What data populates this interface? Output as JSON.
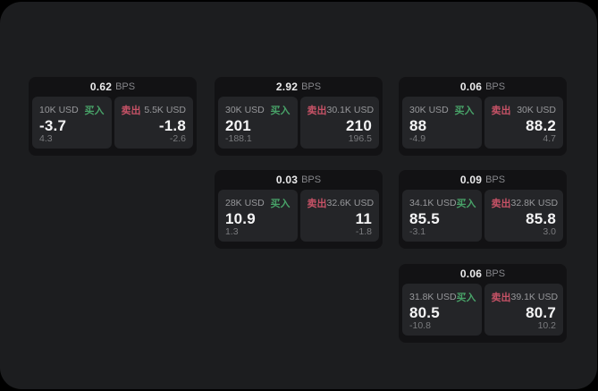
{
  "theme": {
    "backdrop": "#000000",
    "panel_bg": "#1c1d1f",
    "card_bg": "#121214",
    "cell_bg": "#242528",
    "buy_color": "#48a268",
    "sell_color": "#c65266",
    "value_color": "#f4f4f5",
    "muted_text": "#97989b"
  },
  "labels": {
    "bps": "BPS",
    "buy": "买入",
    "sell": "卖出"
  },
  "cards": [
    {
      "bps": "0.62",
      "buy": {
        "amount": "10K USD",
        "value": "-3.7",
        "delta": "4.3"
      },
      "sell": {
        "amount": "5.5K USD",
        "value": "-1.8",
        "delta": "-2.6"
      }
    },
    {
      "bps": "2.92",
      "buy": {
        "amount": "30K USD",
        "value": "201",
        "delta": "-188.1"
      },
      "sell": {
        "amount": "30.1K USD",
        "value": "210",
        "delta": "196.5"
      }
    },
    {
      "bps": "0.06",
      "buy": {
        "amount": "30K USD",
        "value": "88",
        "delta": "-4.9"
      },
      "sell": {
        "amount": "30K USD",
        "value": "88.2",
        "delta": "4.7"
      }
    },
    {
      "bps": "0.03",
      "buy": {
        "amount": "28K USD",
        "value": "10.9",
        "delta": "1.3"
      },
      "sell": {
        "amount": "32.6K USD",
        "value": "11",
        "delta": "-1.8"
      }
    },
    {
      "bps": "0.09",
      "buy": {
        "amount": "34.1K USD",
        "value": "85.5",
        "delta": "-3.1"
      },
      "sell": {
        "amount": "32.8K USD",
        "value": "85.8",
        "delta": "3.0"
      }
    },
    {
      "bps": "0.06",
      "buy": {
        "amount": "31.8K USD",
        "value": "80.5",
        "delta": "-10.8"
      },
      "sell": {
        "amount": "39.1K USD",
        "value": "80.7",
        "delta": "10.2"
      }
    }
  ]
}
